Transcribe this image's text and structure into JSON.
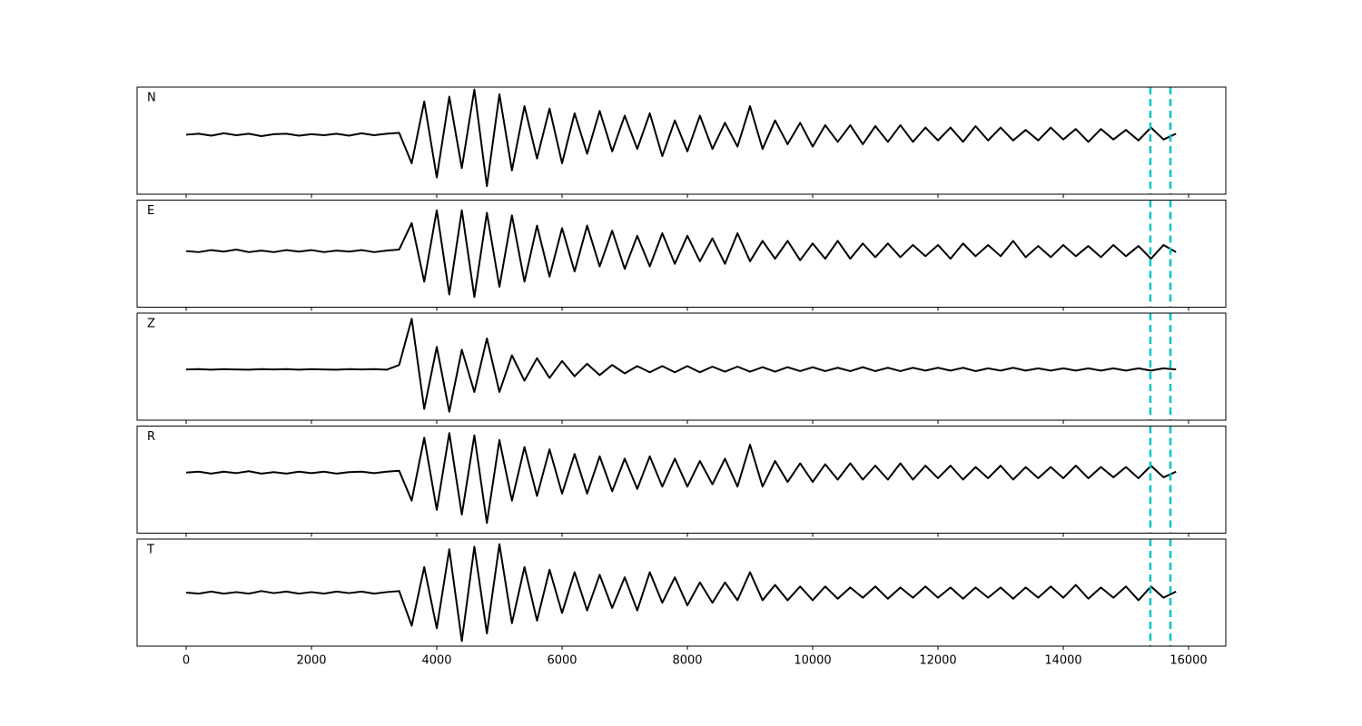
{
  "chart_data": [
    {
      "type": "line",
      "label": "N",
      "color": "#000000",
      "xlim": [
        -783,
        16594
      ],
      "ylim": [
        -1.25,
        1
      ],
      "xticks": [
        0,
        2000,
        4000,
        6000,
        8000,
        10000,
        12000,
        14000,
        16000
      ],
      "tick_labels": false,
      "vlines": [
        15390,
        15710
      ],
      "vline_color": "#00c5c5",
      "x": [
        0,
        200,
        400,
        600,
        800,
        1000,
        1200,
        1400,
        1600,
        1800,
        2000,
        2200,
        2400,
        2600,
        2800,
        3000,
        3200,
        3400,
        3600,
        3800,
        4000,
        4200,
        4400,
        4600,
        4800,
        5000,
        5200,
        5400,
        5600,
        5800,
        6000,
        6200,
        6400,
        6600,
        6800,
        7000,
        7200,
        7400,
        7600,
        7800,
        8000,
        8200,
        8400,
        8600,
        8800,
        9000,
        9200,
        9400,
        9600,
        9800,
        10000,
        10200,
        10400,
        10600,
        10800,
        11000,
        11200,
        11400,
        11600,
        11800,
        12000,
        12200,
        12400,
        12600,
        12800,
        13000,
        13200,
        13400,
        13600,
        13800,
        14000,
        14200,
        14400,
        14600,
        14800,
        15000,
        15200,
        15400,
        15600,
        15800
      ],
      "values": [
        0,
        0.02,
        -0.02,
        0.03,
        -0.01,
        0.02,
        -0.03,
        0.01,
        0.02,
        -0.02,
        0.01,
        -0.01,
        0.02,
        -0.02,
        0.03,
        -0.01,
        0.02,
        0.04,
        -0.6,
        0.7,
        -0.9,
        0.8,
        -0.7,
        0.95,
        -1.08,
        0.85,
        -0.75,
        0.6,
        -0.5,
        0.55,
        -0.6,
        0.45,
        -0.4,
        0.5,
        -0.35,
        0.4,
        -0.3,
        0.45,
        -0.45,
        0.3,
        -0.35,
        0.4,
        -0.3,
        0.25,
        -0.25,
        0.6,
        -0.3,
        0.3,
        -0.2,
        0.25,
        -0.25,
        0.2,
        -0.15,
        0.2,
        -0.2,
        0.18,
        -0.15,
        0.2,
        -0.15,
        0.15,
        -0.12,
        0.15,
        -0.15,
        0.18,
        -0.12,
        0.15,
        -0.12,
        0.1,
        -0.12,
        0.15,
        -0.1,
        0.12,
        -0.15,
        0.12,
        -0.1,
        0.1,
        -0.12,
        0.15,
        -0.1,
        0.02
      ]
    },
    {
      "type": "line",
      "label": "E",
      "color": "#000000",
      "xlim": [
        -783,
        16594
      ],
      "ylim": [
        -1.1,
        1
      ],
      "xticks": [
        0,
        2000,
        4000,
        6000,
        8000,
        10000,
        12000,
        14000,
        16000
      ],
      "tick_labels": false,
      "vlines": [
        15390,
        15710
      ],
      "vline_color": "#00c5c5",
      "x": [
        0,
        200,
        400,
        600,
        800,
        1000,
        1200,
        1400,
        1600,
        1800,
        2000,
        2200,
        2400,
        2600,
        2800,
        3000,
        3200,
        3400,
        3600,
        3800,
        4000,
        4200,
        4400,
        4600,
        4800,
        5000,
        5200,
        5400,
        5600,
        5800,
        6000,
        6200,
        6400,
        6600,
        6800,
        7000,
        7200,
        7400,
        7600,
        7800,
        8000,
        8200,
        8400,
        8600,
        8800,
        9000,
        9200,
        9400,
        9600,
        9800,
        10000,
        10200,
        10400,
        10600,
        10800,
        11000,
        11200,
        11400,
        11600,
        11800,
        12000,
        12200,
        12400,
        12600,
        12800,
        13000,
        13200,
        13400,
        13600,
        13800,
        14000,
        14200,
        14400,
        14600,
        14800,
        15000,
        15200,
        15400,
        15600,
        15800
      ],
      "values": [
        0,
        -0.02,
        0.02,
        -0.01,
        0.03,
        -0.02,
        0.01,
        -0.02,
        0.02,
        -0.01,
        0.02,
        -0.02,
        0.01,
        -0.01,
        0.02,
        -0.02,
        0.01,
        0.03,
        0.55,
        -0.6,
        0.8,
        -0.85,
        0.8,
        -0.9,
        0.75,
        -0.7,
        0.7,
        -0.6,
        0.5,
        -0.5,
        0.45,
        -0.4,
        0.5,
        -0.3,
        0.4,
        -0.35,
        0.3,
        -0.3,
        0.35,
        -0.25,
        0.3,
        -0.2,
        0.25,
        -0.25,
        0.35,
        -0.2,
        0.2,
        -0.15,
        0.2,
        -0.18,
        0.15,
        -0.15,
        0.2,
        -0.15,
        0.15,
        -0.12,
        0.15,
        -0.12,
        0.12,
        -0.1,
        0.12,
        -0.15,
        0.15,
        -0.1,
        0.12,
        -0.1,
        0.2,
        -0.12,
        0.1,
        -0.12,
        0.12,
        -0.1,
        0.1,
        -0.12,
        0.12,
        -0.1,
        0.1,
        -0.15,
        0.12,
        -0.02
      ]
    },
    {
      "type": "line",
      "label": "Z",
      "color": "#000000",
      "xlim": [
        -783,
        16594
      ],
      "ylim": [
        -0.9,
        1
      ],
      "xticks": [
        0,
        2000,
        4000,
        6000,
        8000,
        10000,
        12000,
        14000,
        16000
      ],
      "tick_labels": false,
      "vlines": [
        15390,
        15710
      ],
      "vline_color": "#00c5c5",
      "x": [
        0,
        200,
        400,
        600,
        800,
        1000,
        1200,
        1400,
        1600,
        1800,
        2000,
        2200,
        2400,
        2600,
        2800,
        3000,
        3200,
        3400,
        3600,
        3800,
        4000,
        4200,
        4400,
        4600,
        4800,
        5000,
        5200,
        5400,
        5600,
        5800,
        6000,
        6200,
        6400,
        6600,
        6800,
        7000,
        7200,
        7400,
        7600,
        7800,
        8000,
        8200,
        8400,
        8600,
        8800,
        9000,
        9200,
        9400,
        9600,
        9800,
        10000,
        10200,
        10400,
        10600,
        10800,
        11000,
        11200,
        11400,
        11600,
        11800,
        12000,
        12200,
        12400,
        12600,
        12800,
        13000,
        13200,
        13400,
        13600,
        13800,
        14000,
        14200,
        14400,
        14600,
        14800,
        15000,
        15200,
        15400,
        15600,
        15800
      ],
      "values": [
        0,
        0.005,
        -0.005,
        0.005,
        0,
        -0.005,
        0.005,
        0,
        0.005,
        -0.005,
        0.005,
        0,
        -0.005,
        0.005,
        0,
        0.005,
        -0.005,
        0.08,
        0.9,
        -0.7,
        0.4,
        -0.75,
        0.35,
        -0.4,
        0.55,
        -0.4,
        0.25,
        -0.2,
        0.2,
        -0.15,
        0.15,
        -0.12,
        0.1,
        -0.1,
        0.08,
        -0.07,
        0.06,
        -0.05,
        0.06,
        -0.05,
        0.06,
        -0.05,
        0.05,
        -0.04,
        0.05,
        -0.04,
        0.04,
        -0.04,
        0.04,
        -0.03,
        0.04,
        -0.03,
        0.03,
        -0.03,
        0.04,
        -0.03,
        0.03,
        -0.03,
        0.03,
        -0.02,
        0.03,
        -0.02,
        0.03,
        -0.03,
        0.02,
        -0.02,
        0.03,
        -0.02,
        0.02,
        -0.02,
        0.02,
        -0.02,
        0.02,
        -0.02,
        0.02,
        -0.02,
        0.02,
        -0.02,
        0.02,
        0
      ]
    },
    {
      "type": "line",
      "label": "R",
      "color": "#000000",
      "xlim": [
        -783,
        16594
      ],
      "ylim": [
        -1.3,
        1
      ],
      "xticks": [
        0,
        2000,
        4000,
        6000,
        8000,
        10000,
        12000,
        14000,
        16000
      ],
      "tick_labels": false,
      "vlines": [
        15390,
        15710
      ],
      "vline_color": "#00c5c5",
      "x": [
        0,
        200,
        400,
        600,
        800,
        1000,
        1200,
        1400,
        1600,
        1800,
        2000,
        2200,
        2400,
        2600,
        2800,
        3000,
        3200,
        3400,
        3600,
        3800,
        4000,
        4200,
        4400,
        4600,
        4800,
        5000,
        5200,
        5400,
        5600,
        5800,
        6000,
        6200,
        6400,
        6600,
        6800,
        7000,
        7200,
        7400,
        7600,
        7800,
        8000,
        8200,
        8400,
        8600,
        8800,
        9000,
        9200,
        9400,
        9600,
        9800,
        10000,
        10200,
        10400,
        10600,
        10800,
        11000,
        11200,
        11400,
        11600,
        11800,
        12000,
        12200,
        12400,
        12600,
        12800,
        13000,
        13200,
        13400,
        13600,
        13800,
        14000,
        14200,
        14400,
        14600,
        14800,
        15000,
        15200,
        15400,
        15600,
        15800
      ],
      "values": [
        0,
        0.02,
        -0.02,
        0.02,
        -0.01,
        0.03,
        -0.02,
        0.01,
        -0.02,
        0.02,
        -0.01,
        0.02,
        -0.02,
        0.01,
        0.02,
        -0.01,
        0.02,
        0.04,
        -0.6,
        0.75,
        -0.8,
        0.85,
        -0.9,
        0.8,
        -1.08,
        0.7,
        -0.6,
        0.55,
        -0.5,
        0.5,
        -0.45,
        0.4,
        -0.45,
        0.35,
        -0.4,
        0.3,
        -0.35,
        0.35,
        -0.3,
        0.3,
        -0.3,
        0.25,
        -0.25,
        0.3,
        -0.3,
        0.6,
        -0.3,
        0.25,
        -0.2,
        0.2,
        -0.2,
        0.18,
        -0.15,
        0.2,
        -0.15,
        0.15,
        -0.15,
        0.2,
        -0.15,
        0.15,
        -0.12,
        0.15,
        -0.15,
        0.12,
        -0.12,
        0.15,
        -0.15,
        0.12,
        -0.12,
        0.12,
        -0.12,
        0.15,
        -0.12,
        0.12,
        -0.1,
        0.12,
        -0.12,
        0.15,
        -0.1,
        0.02
      ]
    },
    {
      "type": "line",
      "label": "T",
      "color": "#000000",
      "xlim": [
        -783,
        16594
      ],
      "ylim": [
        -1.05,
        1.05
      ],
      "xticks": [
        0,
        2000,
        4000,
        6000,
        8000,
        10000,
        12000,
        14000,
        16000
      ],
      "tick_labels": true,
      "vlines": [
        15390,
        15710
      ],
      "vline_color": "#00c5c5",
      "x": [
        0,
        200,
        400,
        600,
        800,
        1000,
        1200,
        1400,
        1600,
        1800,
        2000,
        2200,
        2400,
        2600,
        2800,
        3000,
        3200,
        3400,
        3600,
        3800,
        4000,
        4200,
        4400,
        4600,
        4800,
        5000,
        5200,
        5400,
        5600,
        5800,
        6000,
        6200,
        6400,
        6600,
        6800,
        7000,
        7200,
        7400,
        7600,
        7800,
        8000,
        8200,
        8400,
        8600,
        8800,
        9000,
        9200,
        9400,
        9600,
        9800,
        10000,
        10200,
        10400,
        10600,
        10800,
        11000,
        11200,
        11400,
        11600,
        11800,
        12000,
        12200,
        12400,
        12600,
        12800,
        13000,
        13200,
        13400,
        13600,
        13800,
        14000,
        14200,
        14400,
        14600,
        14800,
        15000,
        15200,
        15400,
        15600,
        15800
      ],
      "values": [
        0,
        -0.02,
        0.02,
        -0.02,
        0.01,
        -0.02,
        0.03,
        -0.01,
        0.02,
        -0.02,
        0.01,
        -0.02,
        0.02,
        -0.01,
        0.02,
        -0.02,
        0.01,
        0.03,
        -0.65,
        0.5,
        -0.7,
        0.85,
        -0.95,
        0.9,
        -0.8,
        0.95,
        -0.6,
        0.5,
        -0.55,
        0.45,
        -0.4,
        0.4,
        -0.35,
        0.35,
        -0.3,
        0.3,
        -0.35,
        0.4,
        -0.2,
        0.3,
        -0.25,
        0.2,
        -0.2,
        0.2,
        -0.15,
        0.4,
        -0.15,
        0.15,
        -0.15,
        0.12,
        -0.15,
        0.12,
        -0.12,
        0.1,
        -0.1,
        0.12,
        -0.12,
        0.1,
        -0.1,
        0.12,
        -0.1,
        0.1,
        -0.12,
        0.1,
        -0.1,
        0.1,
        -0.12,
        0.1,
        -0.1,
        0.12,
        -0.1,
        0.15,
        -0.12,
        0.1,
        -0.1,
        0.12,
        -0.15,
        0.12,
        -0.1,
        0.02
      ]
    }
  ]
}
